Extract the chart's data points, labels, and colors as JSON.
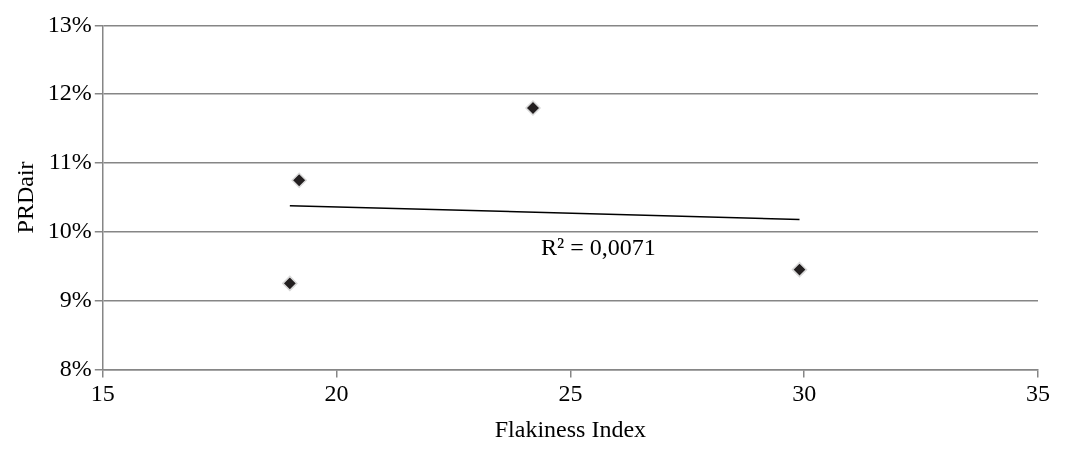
{
  "chart_data": {
    "type": "scatter",
    "xlabel": "Flakiness Index",
    "ylabel": "PRDair",
    "series": [
      {
        "type": "scatter",
        "color": "#231f20",
        "marker": "diamond",
        "x": [
          19.0,
          19.2,
          24.2,
          29.9
        ],
        "values": [
          9.25,
          10.75,
          11.8,
          9.45
        ]
      },
      {
        "type": "line",
        "color": "#000000",
        "marker": "none",
        "line_style": "solid",
        "x": [
          19.0,
          29.9
        ],
        "values": [
          10.38,
          10.18
        ]
      }
    ],
    "annotations": [
      "R² = 0,0071"
    ],
    "xlim": [
      15,
      35
    ],
    "xticks": [
      15,
      20,
      25,
      30,
      35
    ],
    "ylim": [
      8,
      13
    ],
    "yticks": [
      {
        "value": 8,
        "label": "8%"
      },
      {
        "value": 9,
        "label": "9%"
      },
      {
        "value": 10,
        "label": "10%"
      },
      {
        "value": 11,
        "label": "11%"
      },
      {
        "value": 12,
        "label": "12%"
      },
      {
        "value": 13,
        "label": "13%"
      }
    ],
    "grid": "y",
    "legend": false
  }
}
